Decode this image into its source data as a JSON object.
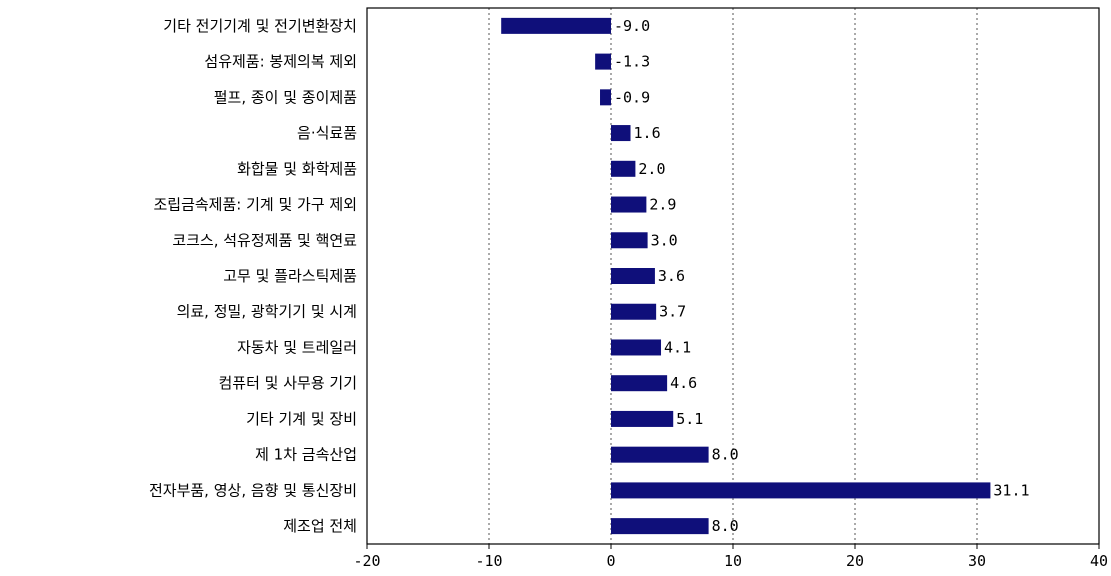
{
  "chart_data": {
    "type": "bar",
    "orientation": "horizontal",
    "categories": [
      "기타 전기기계 및 전기변환장치",
      "섬유제품: 봉제의복 제외",
      "펄프, 종이 및 종이제품",
      "음·식료품",
      "화합물 및 화학제품",
      "조립금속제품: 기계 및 가구 제외",
      "코크스, 석유정제품 및 핵연료",
      "고무 및 플라스틱제품",
      "의료, 정밀, 광학기기 및 시계",
      "자동차 및 트레일러",
      "컴퓨터 및 사무용 기기",
      "기타 기계 및 장비",
      "제 1차 금속산업",
      "전자부품, 영상, 음향 및 통신장비",
      "제조업 전체"
    ],
    "values": [
      -9.0,
      -1.3,
      -0.9,
      1.6,
      2.0,
      2.9,
      3.0,
      3.6,
      3.7,
      4.1,
      4.6,
      5.1,
      8.0,
      31.1,
      8.0
    ],
    "value_labels": [
      "-9.0",
      "-1.3",
      "-0.9",
      "1.6",
      "2.0",
      "2.9",
      "3.0",
      "3.6",
      "3.7",
      "4.1",
      "4.6",
      "5.1",
      "8.0",
      "31.1",
      "8.0"
    ],
    "xlim": [
      -20,
      40
    ],
    "xticks": [
      -20,
      -10,
      0,
      10,
      20,
      30,
      40
    ],
    "xtick_labels": [
      "-20",
      "-10",
      "0",
      "10",
      "20",
      "30",
      "40"
    ],
    "grid": "vertical dashed",
    "bar_color": "#0f0f7a",
    "title": "",
    "xlabel": "",
    "ylabel": ""
  }
}
